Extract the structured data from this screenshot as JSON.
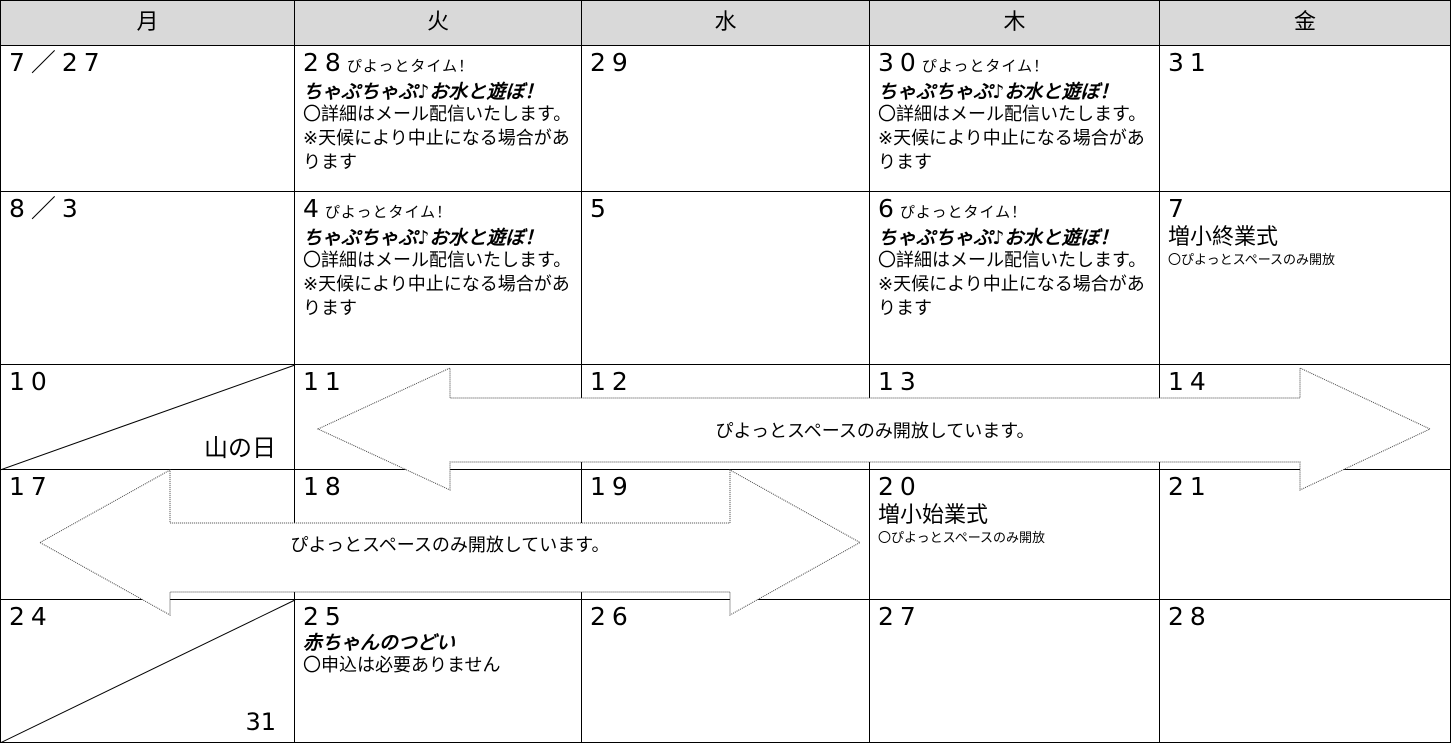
{
  "header": [
    "月",
    "火",
    "水",
    "木",
    "金"
  ],
  "weeks": [
    [
      {
        "date": "7／27"
      },
      {
        "date": "28",
        "note": "ぴよっとタイム！",
        "title": "ちゃぷちゃぷ♪お水と遊ぼ！",
        "text": "〇詳細はメール配信いたします。※天候により中止になる場合があります"
      },
      {
        "date": "29"
      },
      {
        "date": "30",
        "note": "ぴよっとタイム！",
        "title": "ちゃぷちゃぷ♪お水と遊ぼ！",
        "text": "〇詳細はメール配信いたします。※天候により中止になる場合があります"
      },
      {
        "date": "31"
      }
    ],
    [
      {
        "date": "8／3"
      },
      {
        "date": "4",
        "note": "ぴよっとタイム！",
        "title": "ちゃぷちゃぷ♪お水と遊ぼ！",
        "text": "〇詳細はメール配信いたします。※天候により中止になる場合があります"
      },
      {
        "date": "5"
      },
      {
        "date": "6",
        "note": "ぴよっとタイム！",
        "title": "ちゃぷちゃぷ♪お水と遊ぼ！",
        "text": "〇詳細はメール配信いたします。※天候により中止になる場合があります"
      },
      {
        "date": "7",
        "event": "増小終業式",
        "sub": "〇ぴよっとスペースのみ開放"
      }
    ],
    [
      {
        "date": "10",
        "corner": "山の日"
      },
      {
        "date": "11"
      },
      {
        "date": "12"
      },
      {
        "date": "13"
      },
      {
        "date": "14"
      }
    ],
    [
      {
        "date": "17"
      },
      {
        "date": "18"
      },
      {
        "date": "19"
      },
      {
        "date": "20",
        "event": "増小始業式",
        "sub": "〇ぴよっとスペースのみ開放"
      },
      {
        "date": "21"
      }
    ],
    [
      {
        "date": "24",
        "corner": "31"
      },
      {
        "date": "25",
        "title": "赤ちゃんのつどい",
        "text": "〇申込は必要ありません"
      },
      {
        "date": "26"
      },
      {
        "date": "27"
      },
      {
        "date": "28"
      }
    ]
  ],
  "banners": [
    "ぴよっとスペースのみ開放しています。",
    "ぴよっとスペースのみ開放しています。"
  ]
}
